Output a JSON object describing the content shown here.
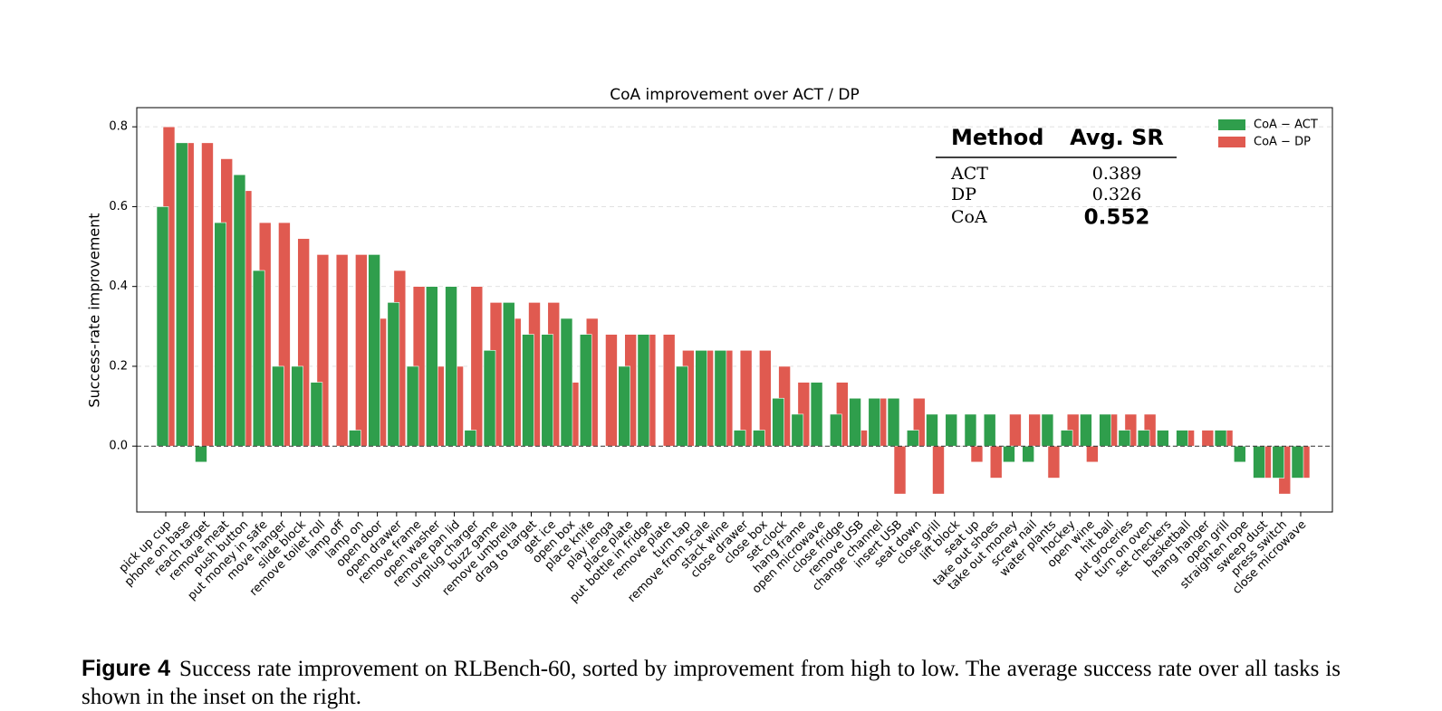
{
  "chart_data": {
    "type": "bar",
    "title": "CoA improvement over ACT / DP",
    "y_label": "Success-rate improvement",
    "categories": [
      "pick up cup",
      "phone on base",
      "reach target",
      "remove meat",
      "push button",
      "put money in safe",
      "move hanger",
      "slide block",
      "remove toilet roll",
      "lamp off",
      "lamp on",
      "open door",
      "open drawer",
      "remove frame",
      "open washer",
      "remove pan lid",
      "unplug charger",
      "buzz game",
      "remove umbrella",
      "drag to target",
      "get ice",
      "open box",
      "place knife",
      "play jenga",
      "place plate",
      "put bottle in fridge",
      "remove plate",
      "turn tap",
      "remove from scale",
      "stack wine",
      "close drawer",
      "close box",
      "set clock",
      "hang frame",
      "open microwave",
      "close fridge",
      "remove USB",
      "change channel",
      "insert USB",
      "seat down",
      "close grill",
      "lift block",
      "seat up",
      "take out shoes",
      "take out money",
      "screw nail",
      "water plants",
      "hockey",
      "open wine",
      "hit ball",
      "put groceries",
      "turn on oven",
      "set checkers",
      "basketball",
      "hang hanger",
      "open grill",
      "straighten rope",
      "sweep dust",
      "press switch",
      "close microwave"
    ],
    "series": [
      {
        "name": "CoA − ACT",
        "color": "#2f9e4c",
        "values": [
          0.6,
          0.76,
          -0.04,
          0.56,
          0.68,
          0.44,
          0.2,
          0.2,
          0.16,
          0.0,
          0.04,
          0.48,
          0.36,
          0.2,
          0.4,
          0.4,
          0.04,
          0.24,
          0.36,
          0.28,
          0.28,
          0.32,
          0.28,
          0.0,
          0.2,
          0.28,
          0.0,
          0.2,
          0.24,
          0.24,
          0.04,
          0.04,
          0.12,
          0.08,
          0.16,
          0.08,
          0.12,
          0.12,
          0.12,
          0.04,
          0.08,
          0.08,
          0.08,
          0.08,
          -0.04,
          -0.04,
          0.08,
          0.04,
          0.08,
          0.08,
          0.04,
          0.04,
          0.04,
          0.04,
          0.0,
          0.04,
          -0.04,
          -0.08,
          -0.08,
          -0.08
        ]
      },
      {
        "name": "CoA − DP",
        "color": "#e05a50",
        "values": [
          0.8,
          0.76,
          0.76,
          0.72,
          0.64,
          0.56,
          0.56,
          0.52,
          0.48,
          0.48,
          0.48,
          0.32,
          0.44,
          0.4,
          0.2,
          0.2,
          0.4,
          0.36,
          0.32,
          0.36,
          0.36,
          0.16,
          0.32,
          0.28,
          0.28,
          0.28,
          0.28,
          0.24,
          0.24,
          0.24,
          0.24,
          0.24,
          0.2,
          0.16,
          0.0,
          0.16,
          0.04,
          0.12,
          -0.12,
          0.12,
          -0.12,
          0.0,
          -0.04,
          -0.08,
          0.08,
          0.08,
          -0.08,
          0.08,
          -0.04,
          0.08,
          0.08,
          0.08,
          0.0,
          0.04,
          0.04,
          0.04,
          0.0,
          -0.08,
          -0.12,
          -0.08
        ]
      }
    ],
    "ylim": [
      -0.165,
      0.848
    ],
    "yticks": [
      {
        "value": 0,
        "label": "0.0"
      },
      0.2,
      0.4,
      0.6,
      0.8
    ],
    "grid": true,
    "reference_line": 0,
    "legend": "upper right",
    "inset": {
      "headers": [
        "Method",
        "Avg. SR"
      ],
      "rows": [
        [
          "ACT",
          0.389
        ],
        [
          "DP",
          0.326
        ],
        [
          "CoA",
          0.552
        ]
      ]
    },
    "caption": {
      "label": "Figure 4",
      "text": "Success rate improvement on RLBench-60, sorted by improvement from high to low. The average success rate over all tasks is shown in the inset on the right."
    }
  }
}
